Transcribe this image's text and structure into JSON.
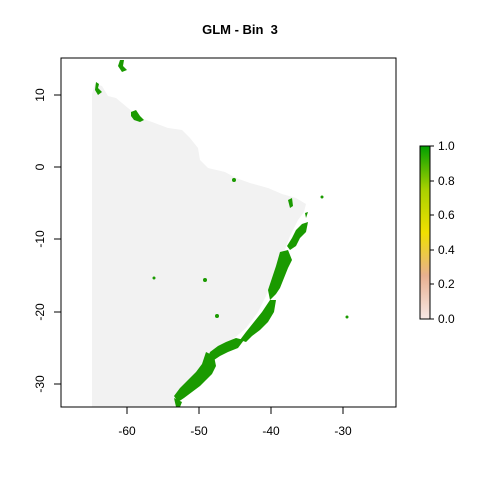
{
  "title": "GLM - Bin  3",
  "map": {
    "x_ticks": [
      "-60",
      "-50",
      "-40",
      "-30"
    ],
    "y_ticks": [
      "10",
      "0",
      "-10",
      "-20",
      "-30"
    ],
    "x_range": [
      -68,
      -25
    ],
    "y_range": [
      -33,
      15
    ],
    "land_color": "#f2f2f2",
    "presence_color": "#1a9a00"
  },
  "legend": {
    "ticks": [
      "1.0",
      "0.8",
      "0.6",
      "0.4",
      "0.2",
      "0.0"
    ],
    "colors": [
      "#f5d6d0",
      "#e0a070",
      "#f0e000",
      "#a8d000",
      "#009e00"
    ]
  }
}
